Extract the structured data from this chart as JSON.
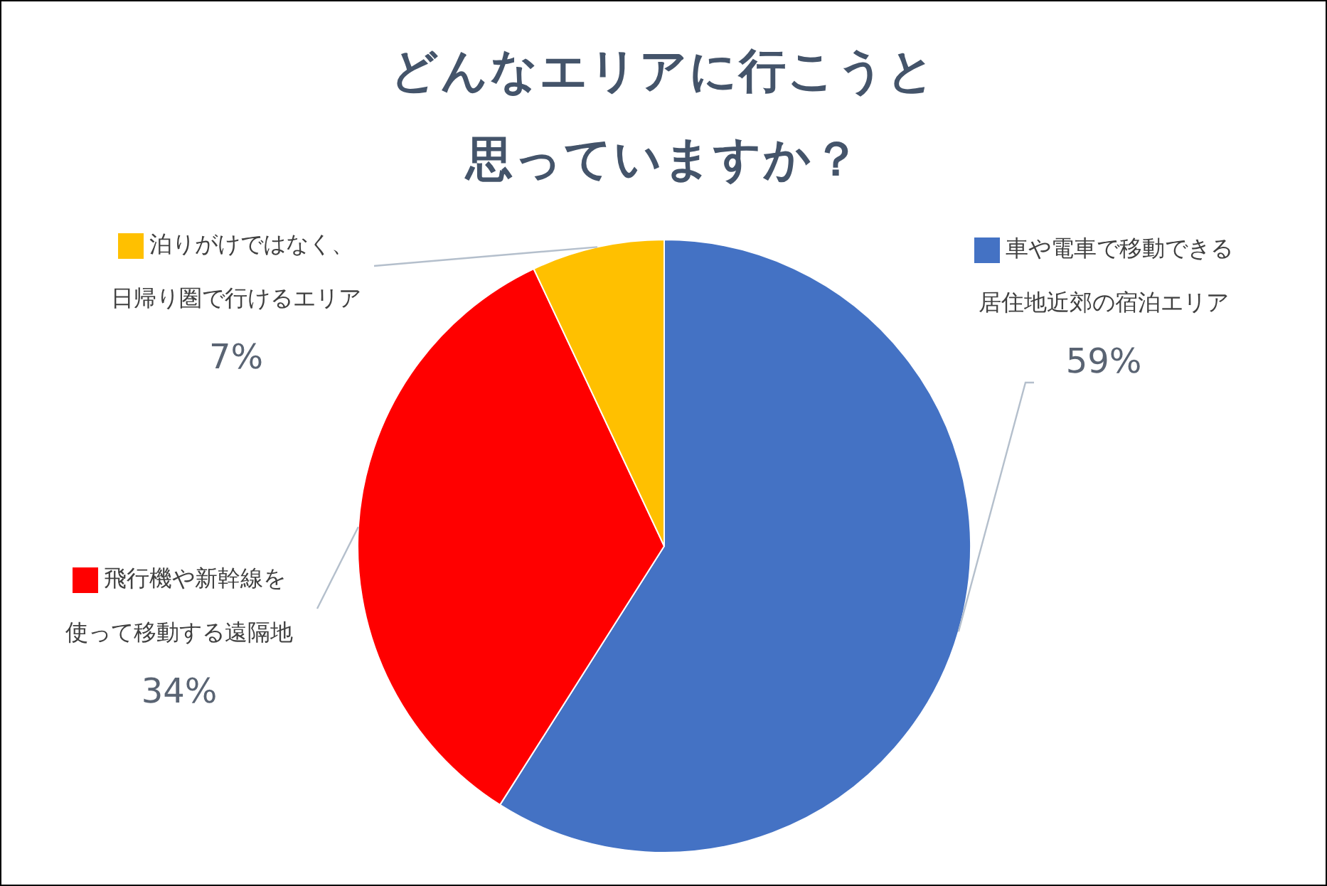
{
  "chart_data": {
    "type": "pie",
    "title": "どんなエリアに行こうと思っていますか？",
    "categories": [
      "車や電車で移動できる居住地近郊の宿泊エリア",
      "飛行機や新幹線を使って移動する遠隔地",
      "泊りがけではなく、日帰り圏で行けるエリア"
    ],
    "values": [
      59,
      34,
      7
    ],
    "value_labels": [
      "59%",
      "34%",
      "7%"
    ],
    "colors": [
      "#4472c4",
      "#ff0000",
      "#ffc000"
    ],
    "legend": "top"
  }
}
